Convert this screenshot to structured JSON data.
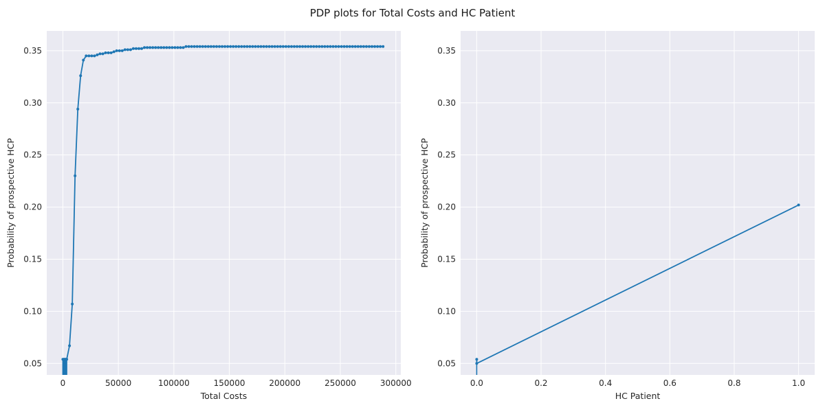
{
  "suptitle": "PDP plots for Total Costs and HC Patient",
  "style": {
    "axes_bg": "#eaeaf2",
    "grid": "#ffffff",
    "line": "#1f77b4",
    "fig_bg": "#ffffff"
  },
  "chart_data": [
    {
      "type": "line",
      "xlabel": "Total Costs",
      "ylabel": "Probability of prospective HCP",
      "xlim": [
        -14500,
        304500
      ],
      "ylim": [
        0.039,
        0.369
      ],
      "xticks": [
        0,
        50000,
        100000,
        150000,
        200000,
        250000,
        300000
      ],
      "xtick_labels": [
        "0",
        "50000",
        "100000",
        "150000",
        "200000",
        "250000",
        "300000"
      ],
      "yticks": [
        0.05,
        0.1,
        0.15,
        0.2,
        0.25,
        0.3,
        0.35
      ],
      "ytick_labels": [
        "0.05",
        "0.10",
        "0.15",
        "0.20",
        "0.25",
        "0.30",
        "0.35"
      ],
      "grid": true,
      "markers": true,
      "spikes": {
        "x": [
          0,
          500,
          1000,
          1500,
          2000,
          2500,
          3000,
          3500
        ],
        "y_top": 0.054
      },
      "series": [
        {
          "x": [
            0,
            500,
            1000,
            1500,
            2000,
            2500,
            3000,
            3500,
            6000,
            8500,
            11000,
            13500,
            16000,
            18500,
            21000,
            23500,
            26000,
            28500,
            31000,
            33500,
            36000,
            38500,
            41000,
            43500,
            46000,
            48500,
            51000,
            53500,
            56000,
            58500,
            61000,
            63500,
            66000,
            68500,
            71000,
            73500,
            76000,
            78500,
            81000,
            83500,
            86000,
            88500,
            91000,
            93500,
            96000,
            98500,
            101000,
            103500,
            106000,
            108500,
            111000,
            113500,
            116000,
            118500,
            121000,
            123500,
            126000,
            128500,
            131000,
            133500,
            136000,
            138500,
            141000,
            143500,
            146000,
            148500,
            151000,
            153500,
            156000,
            158500,
            161000,
            163500,
            166000,
            168500,
            171000,
            173500,
            176000,
            178500,
            181000,
            183500,
            186000,
            188500,
            191000,
            193500,
            196000,
            198500,
            201000,
            203500,
            206000,
            208500,
            211000,
            213500,
            216000,
            218500,
            221000,
            223500,
            226000,
            228500,
            231000,
            233500,
            236000,
            238500,
            241000,
            243500,
            246000,
            248500,
            251000,
            253500,
            256000,
            258500,
            261000,
            263500,
            266000,
            268500,
            271000,
            273500,
            276000,
            278500,
            281000,
            283500,
            286000,
            288500
          ],
          "y": [
            0.054,
            0.054,
            0.054,
            0.054,
            0.054,
            0.054,
            0.054,
            0.054,
            0.067,
            0.107,
            0.23,
            0.294,
            0.326,
            0.341,
            0.345,
            0.345,
            0.345,
            0.345,
            0.346,
            0.347,
            0.347,
            0.348,
            0.348,
            0.348,
            0.349,
            0.35,
            0.35,
            0.35,
            0.351,
            0.351,
            0.351,
            0.352,
            0.352,
            0.352,
            0.352,
            0.353,
            0.353,
            0.353,
            0.353,
            0.353,
            0.353,
            0.353,
            0.353,
            0.353,
            0.353,
            0.353,
            0.353,
            0.353,
            0.353,
            0.353,
            0.354,
            0.354,
            0.354,
            0.354,
            0.354,
            0.354,
            0.354,
            0.354,
            0.354,
            0.354,
            0.354,
            0.354,
            0.354,
            0.354,
            0.354,
            0.354,
            0.354,
            0.354,
            0.354,
            0.354,
            0.354,
            0.354,
            0.354,
            0.354,
            0.354,
            0.354,
            0.354,
            0.354,
            0.354,
            0.354,
            0.354,
            0.354,
            0.354,
            0.354,
            0.354,
            0.354,
            0.354,
            0.354,
            0.354,
            0.354,
            0.354,
            0.354,
            0.354,
            0.354,
            0.354,
            0.354,
            0.354,
            0.354,
            0.354,
            0.354,
            0.354,
            0.354,
            0.354,
            0.354,
            0.354,
            0.354,
            0.354,
            0.354,
            0.354,
            0.354,
            0.354,
            0.354,
            0.354,
            0.354,
            0.354,
            0.354,
            0.354,
            0.354,
            0.354,
            0.354,
            0.354,
            0.354
          ]
        }
      ]
    },
    {
      "type": "line",
      "xlabel": "HC Patient",
      "ylabel": "Probability of prospective HCP",
      "xlim": [
        -0.05,
        1.05
      ],
      "ylim": [
        0.039,
        0.369
      ],
      "xticks": [
        0.0,
        0.2,
        0.4,
        0.6,
        0.8,
        1.0
      ],
      "xtick_labels": [
        "0.0",
        "0.2",
        "0.4",
        "0.6",
        "0.8",
        "1.0"
      ],
      "yticks": [
        0.05,
        0.1,
        0.15,
        0.2,
        0.25,
        0.3,
        0.35
      ],
      "ytick_labels": [
        "0.05",
        "0.10",
        "0.15",
        "0.20",
        "0.25",
        "0.30",
        "0.35"
      ],
      "grid": true,
      "markers": true,
      "spikes": {
        "x": [
          0.0
        ],
        "y_top": 0.054
      },
      "series": [
        {
          "x": [
            0.0,
            0.0,
            1.0
          ],
          "y": [
            0.054,
            0.05,
            0.202
          ]
        }
      ]
    }
  ]
}
